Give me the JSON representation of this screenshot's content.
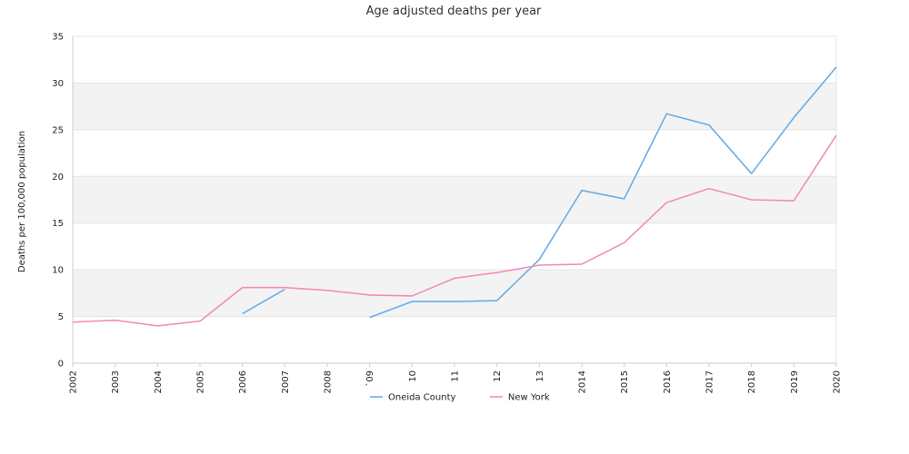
{
  "chart_data": {
    "type": "line",
    "title": "Age adjusted deaths per year",
    "ylabel": "Deaths per 100,000 population",
    "xlabel": "",
    "ylim": [
      0,
      35
    ],
    "yticks": [
      0,
      5,
      10,
      15,
      20,
      25,
      30,
      35
    ],
    "categories": [
      "2002",
      "2003",
      "2004",
      "2005",
      "2006",
      "2007",
      "2008",
      "2009",
      "2010",
      "2011",
      "2012",
      "2013",
      "2014",
      "2015",
      "2016",
      "2017",
      "2018",
      "2019",
      "2020"
    ],
    "x_tick_labels": [
      "2002",
      "2003",
      "2004",
      "2005",
      "2006",
      "2007",
      "2008",
      "`09",
      "10",
      "11",
      "12",
      "13",
      "2014",
      "2015",
      "2016",
      "2017",
      "2018",
      "2019",
      "2020"
    ],
    "grid": "alternating horizontal bands",
    "legend_position": "bottom-center",
    "series": [
      {
        "name": "Oneida County",
        "color": "#6aaee8",
        "values": [
          null,
          null,
          null,
          null,
          5.3,
          7.9,
          null,
          4.9,
          6.6,
          6.6,
          6.7,
          11.1,
          18.5,
          17.6,
          26.7,
          25.5,
          20.3,
          26.3,
          31.7
        ]
      },
      {
        "name": "New York",
        "color": "#f38cbf",
        "values": [
          4.4,
          4.6,
          4.0,
          4.5,
          8.1,
          8.1,
          7.8,
          7.3,
          7.2,
          9.1,
          9.7,
          10.5,
          10.6,
          12.9,
          17.2,
          18.7,
          17.5,
          17.4,
          24.4
        ]
      }
    ]
  }
}
